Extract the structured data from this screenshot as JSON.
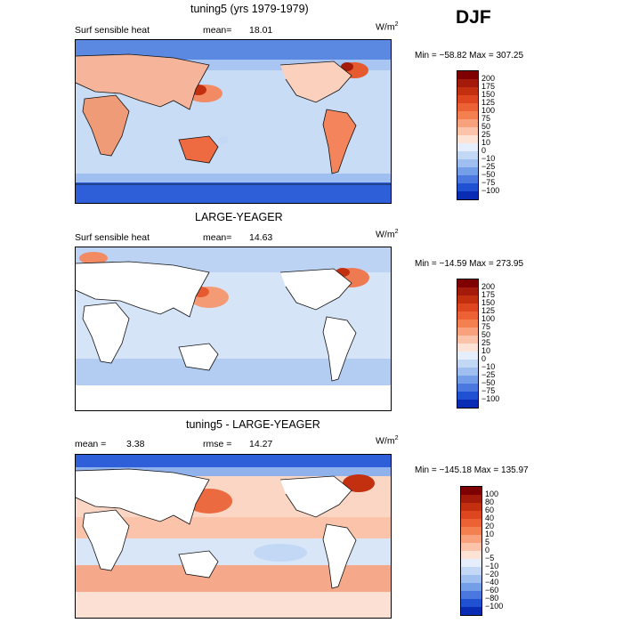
{
  "season": "DJF",
  "panels": [
    {
      "title": "tuning5 (yrs 1979-1979)",
      "left_label": "Surf sensible heat",
      "stat_label": "mean=",
      "stat_value": "18.01",
      "units": "W/m",
      "units_sup": "2",
      "minmax": "Min = −58.82  Max = 307.25",
      "colorbar": {
        "labels": [
          "200",
          "175",
          "150",
          "125",
          "100",
          "75",
          "50",
          "25",
          "10",
          "0",
          "−10",
          "−25",
          "−50",
          "−75",
          "−100"
        ],
        "colors": [
          "#7f0000",
          "#a51b0b",
          "#c3300f",
          "#de4620",
          "#ec6235",
          "#f4804f",
          "#f9a07c",
          "#fbc3a9",
          "#fde3d5",
          "#e6eefb",
          "#c3d8f5",
          "#9ebff0",
          "#749fe8",
          "#4a78df",
          "#2151d3",
          "#0a2cb5"
        ]
      }
    },
    {
      "title": "LARGE-YEAGER",
      "left_label": "Surf sensible heat",
      "stat_label": "mean=",
      "stat_value": "14.63",
      "units": "W/m",
      "units_sup": "2",
      "minmax": "Min = −14.59  Max = 273.95",
      "colorbar": {
        "labels": [
          "200",
          "175",
          "150",
          "125",
          "100",
          "75",
          "50",
          "25",
          "10",
          "0",
          "−10",
          "−25",
          "−50",
          "−75",
          "−100"
        ],
        "colors": [
          "#7f0000",
          "#a51b0b",
          "#c3300f",
          "#de4620",
          "#ec6235",
          "#f4804f",
          "#f9a07c",
          "#fbc3a9",
          "#fde3d5",
          "#e6eefb",
          "#c3d8f5",
          "#9ebff0",
          "#749fe8",
          "#4a78df",
          "#2151d3",
          "#0a2cb5"
        ]
      }
    },
    {
      "title": "tuning5 - LARGE-YEAGER",
      "left_label": "mean =",
      "stat_label": "rmse =",
      "stat_value": "14.27",
      "left_value": "3.38",
      "units": "W/m",
      "units_sup": "2",
      "minmax": "Min = −145.18  Max = 135.97",
      "colorbar": {
        "labels": [
          "100",
          "80",
          "60",
          "40",
          "20",
          "10",
          "5",
          "0",
          "−5",
          "−10",
          "−20",
          "−40",
          "−60",
          "−80",
          "−100"
        ],
        "colors": [
          "#7f0000",
          "#a51b0b",
          "#c3300f",
          "#de4620",
          "#ec6235",
          "#f4804f",
          "#f9a07c",
          "#fbc3a9",
          "#fde3d5",
          "#e6eefb",
          "#c3d8f5",
          "#9ebff0",
          "#749fe8",
          "#4a78df",
          "#2151d3",
          "#0a2cb5"
        ]
      }
    }
  ],
  "chart_data": [
    {
      "type": "heatmap",
      "title": "tuning5 (yrs 1979-1979)",
      "variable": "Surf sensible heat",
      "units": "W/m2",
      "mean": 18.01,
      "min": -58.82,
      "max": 307.25,
      "contour_levels": [
        -100,
        -75,
        -50,
        -25,
        -10,
        0,
        10,
        25,
        50,
        75,
        100,
        125,
        150,
        175,
        200
      ]
    },
    {
      "type": "heatmap",
      "title": "LARGE-YEAGER",
      "variable": "Surf sensible heat",
      "units": "W/m2",
      "mean": 14.63,
      "min": -14.59,
      "max": 273.95,
      "contour_levels": [
        -100,
        -75,
        -50,
        -25,
        -10,
        0,
        10,
        25,
        50,
        75,
        100,
        125,
        150,
        175,
        200
      ]
    },
    {
      "type": "heatmap",
      "title": "tuning5 - LARGE-YEAGER",
      "units": "W/m2",
      "mean": 3.38,
      "rmse": 14.27,
      "min": -145.18,
      "max": 135.97,
      "contour_levels": [
        -100,
        -80,
        -60,
        -40,
        -20,
        -10,
        -5,
        0,
        5,
        10,
        20,
        40,
        60,
        80,
        100
      ]
    }
  ]
}
